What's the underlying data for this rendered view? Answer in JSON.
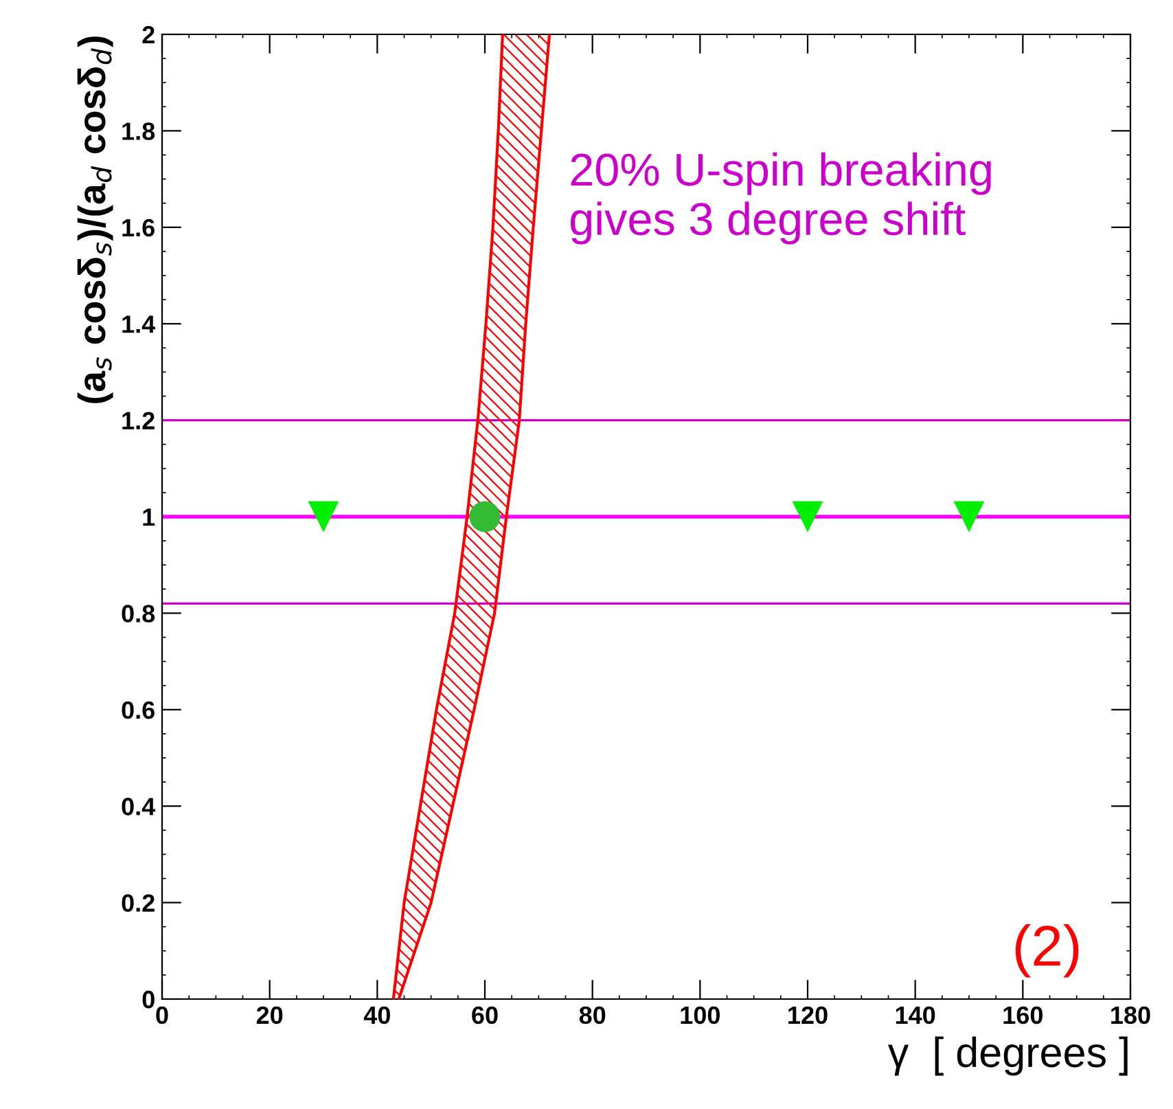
{
  "chart_data": {
    "type": "scatter",
    "xlabel": "γ  [ degrees ]",
    "ylabel": "(a$_{s}$ cosδ$_{s}$)/(a$_{d}$ cosδ$_{d}$)",
    "xlim": [
      0,
      180
    ],
    "ylim": [
      0,
      2
    ],
    "xticks": [
      0,
      20,
      40,
      60,
      80,
      100,
      120,
      140,
      160,
      180
    ],
    "yticks": [
      0,
      0.2,
      0.4,
      0.6,
      0.8,
      1,
      1.2,
      1.4,
      1.6,
      1.8,
      2
    ],
    "grid": false,
    "legend": false,
    "series": [
      {
        "type": "line",
        "color": "#ff0000",
        "x": [
          43,
          45,
          48,
          51,
          54.4,
          56.7,
          58.7,
          60.2,
          61.5,
          62.5,
          63.3
        ],
        "values": [
          0,
          0.2,
          0.4,
          0.6,
          0.8,
          1.0,
          1.2,
          1.4,
          1.6,
          1.8,
          2.0
        ]
      },
      {
        "type": "line",
        "color": "#ff0000",
        "x": [
          44,
          50,
          54,
          58,
          61.8,
          64,
          66.4,
          67.6,
          69,
          70.5,
          72
        ],
        "values": [
          0,
          0.2,
          0.4,
          0.6,
          0.8,
          1.0,
          1.2,
          1.4,
          1.6,
          1.8,
          2.0
        ]
      },
      {
        "marker": "triangle",
        "color": "#00ee00",
        "x": [
          30,
          120,
          150
        ],
        "values": [
          1,
          1,
          1
        ]
      },
      {
        "marker": "circle",
        "color": "#33bb33",
        "x": [
          60
        ],
        "values": [
          1
        ]
      }
    ],
    "ref_lines": [
      {
        "axis": "y",
        "value": 1.2,
        "color": "#cc00cc"
      },
      {
        "axis": "y",
        "value": 1,
        "color": "#ff00ff"
      },
      {
        "axis": "y",
        "value": 0.82,
        "color": "#cc00cc"
      }
    ],
    "annotations": [
      "20% U-spin breaking\ngives 3 degree shift",
      "(2)"
    ]
  }
}
